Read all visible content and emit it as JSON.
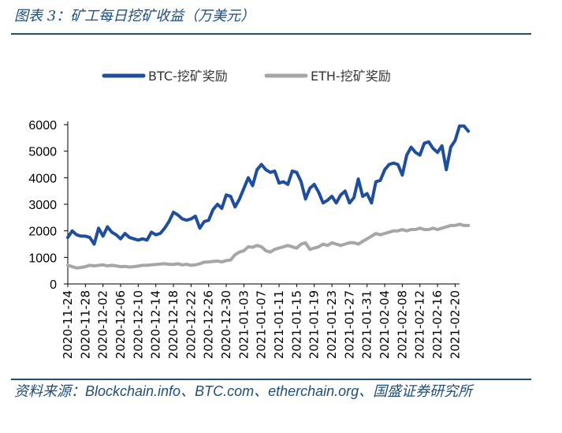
{
  "figure": {
    "title": "图表 3：矿工每日挖矿收益（万美元）"
  },
  "source": {
    "label": "资料来源：",
    "items": [
      "Blockchain.info",
      "、",
      "BTC.com",
      "、",
      "etherchain.org",
      "、",
      "国盛证券研究所"
    ]
  },
  "chart_data": {
    "type": "line",
    "title": "",
    "xlabel": "",
    "ylabel": "",
    "ylim": [
      0,
      6000
    ],
    "yticks": [
      0,
      1000,
      2000,
      3000,
      4000,
      5000,
      6000
    ],
    "grid": false,
    "legend": "top",
    "x_start": "2020-11-24",
    "x_end": "2021-02-21",
    "x_tick_labels": [
      "2020-11-24",
      "2020-11-28",
      "2020-12-02",
      "2020-12-06",
      "2020-12-10",
      "2020-12-14",
      "2020-12-18",
      "2020-12-22",
      "2020-12-26",
      "2020-12-30",
      "2021-01-03",
      "2021-01-07",
      "2021-01-11",
      "2021-01-15",
      "2021-01-19",
      "2021-01-23",
      "2021-01-27",
      "2021-01-31",
      "2021-02-04",
      "2021-02-08",
      "2021-02-12",
      "2021-02-16",
      "2021-02-20"
    ],
    "series": [
      {
        "name": "BTC-挖矿奖励",
        "color": "#1f4e9c",
        "values": [
          1750,
          2000,
          1850,
          1800,
          1800,
          1750,
          1500,
          2100,
          1800,
          2150,
          1950,
          1850,
          1700,
          1900,
          1750,
          1700,
          1650,
          1700,
          1650,
          1950,
          1850,
          1900,
          2100,
          2350,
          2700,
          2600,
          2450,
          2400,
          2450,
          2550,
          2100,
          2350,
          2400,
          2800,
          3000,
          2850,
          3350,
          3300,
          2900,
          3200,
          3600,
          4000,
          3700,
          4300,
          4500,
          4300,
          4200,
          4250,
          3800,
          3850,
          3750,
          4250,
          4200,
          3850,
          3200,
          3600,
          3750,
          3450,
          3050,
          3150,
          3300,
          3050,
          3350,
          3500,
          3050,
          3250,
          3950,
          3300,
          3400,
          3050,
          3850,
          3900,
          4300,
          4500,
          4550,
          4500,
          4100,
          4850,
          5150,
          4950,
          4850,
          5300,
          5350,
          5100,
          4950,
          5200,
          4300,
          5150,
          5400,
          5950,
          5950,
          5750
        ]
      },
      {
        "name": "ETH-挖矿奖励",
        "color": "#a6a6a6",
        "values": [
          700,
          650,
          600,
          620,
          650,
          700,
          680,
          700,
          720,
          680,
          700,
          680,
          650,
          660,
          640,
          650,
          670,
          700,
          700,
          720,
          730,
          750,
          760,
          740,
          730,
          760,
          720,
          740,
          700,
          720,
          760,
          820,
          830,
          850,
          860,
          830,
          880,
          900,
          1100,
          1200,
          1250,
          1400,
          1380,
          1450,
          1400,
          1250,
          1200,
          1300,
          1350,
          1400,
          1450,
          1400,
          1350,
          1500,
          1550,
          1300,
          1350,
          1400,
          1500,
          1450,
          1550,
          1500,
          1450,
          1500,
          1550,
          1550,
          1500,
          1600,
          1700,
          1800,
          1900,
          1850,
          1900,
          1950,
          2000,
          2000,
          2050,
          2000,
          2050,
          2050,
          2100,
          2050,
          2050,
          2100,
          2050,
          2100,
          2150,
          2200,
          2200,
          2250,
          2200,
          2200
        ]
      }
    ]
  }
}
